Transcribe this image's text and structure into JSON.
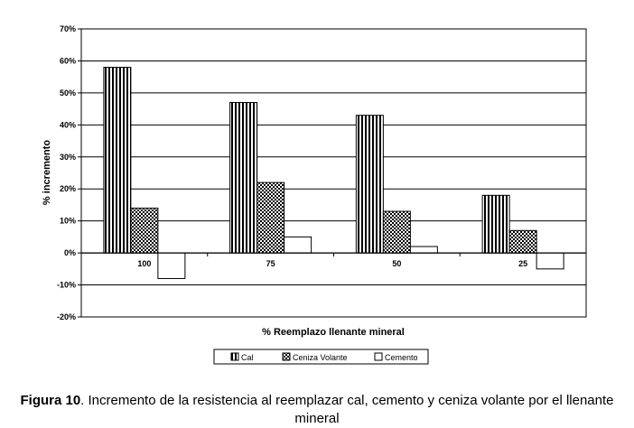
{
  "chart_data": {
    "type": "bar",
    "categories": [
      "100",
      "75",
      "50",
      "25"
    ],
    "series": [
      {
        "name": "Cal",
        "values": [
          58,
          47,
          43,
          18
        ]
      },
      {
        "name": "Ceniza Volante",
        "values": [
          14,
          22,
          13,
          7
        ]
      },
      {
        "name": "Cemento",
        "values": [
          -8,
          5,
          2,
          -5
        ]
      }
    ],
    "xlabel": "% Reemplazo llenante mineral",
    "ylabel": "% incremento",
    "ylim": [
      -20,
      70
    ],
    "yticks": [
      "-20%",
      "-10%",
      "0%",
      "10%",
      "20%",
      "30%",
      "40%",
      "50%",
      "60%",
      "70%"
    ],
    "grid": true,
    "legend_position": "bottom",
    "series_fills": [
      "vertical-stripes",
      "checker",
      "white"
    ]
  },
  "caption": {
    "label": "Figura 10",
    "text": "Incremento de la resistencia al reemplazar cal, cemento y ceniza volante por el llenante mineral"
  }
}
